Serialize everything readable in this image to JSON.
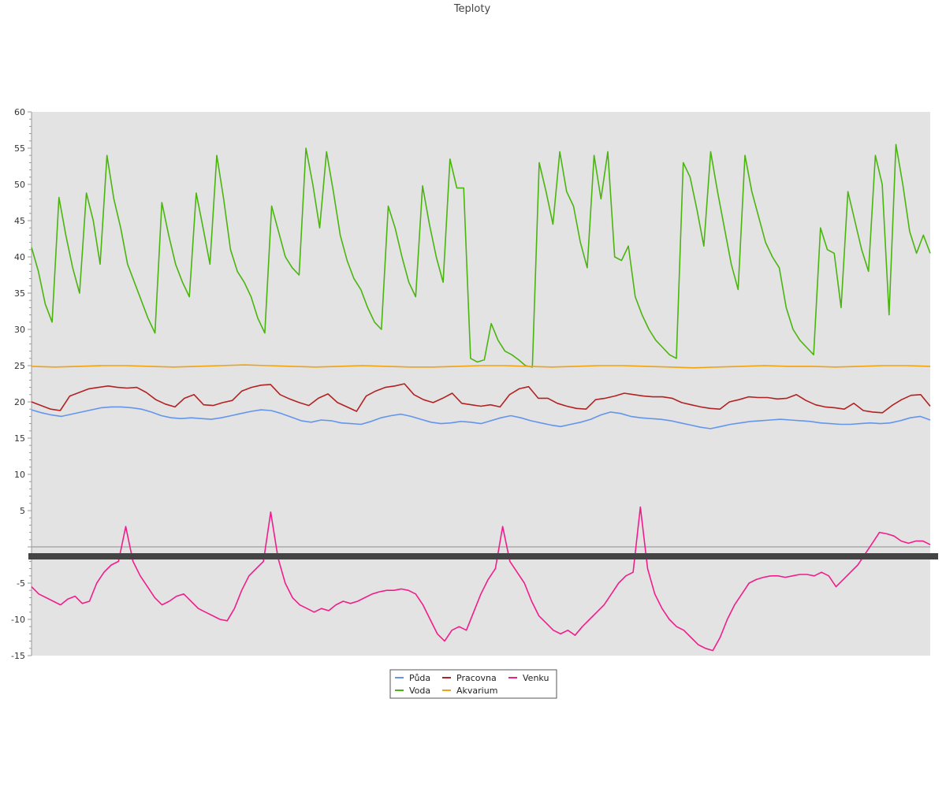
{
  "chart_data": {
    "type": "line",
    "title": "Teploty",
    "xlabel": "",
    "ylabel": "",
    "ylim": [
      -15,
      60
    ],
    "yticks": [
      -15,
      -10,
      -5,
      5,
      10,
      15,
      20,
      25,
      30,
      35,
      40,
      45,
      50,
      55,
      60
    ],
    "grid": false,
    "legend_position": "bottom-center",
    "x_tick_labels_note": "",
    "series": [
      {
        "name": "Půda",
        "color": "#6495ED",
        "values": [
          18.9,
          18.5,
          18.2,
          18.0,
          18.3,
          18.6,
          18.9,
          19.2,
          19.3,
          19.3,
          19.2,
          19.0,
          18.6,
          18.1,
          17.8,
          17.7,
          17.8,
          17.7,
          17.6,
          17.8,
          18.1,
          18.4,
          18.7,
          18.9,
          18.8,
          18.4,
          17.9,
          17.4,
          17.2,
          17.5,
          17.4,
          17.1,
          17.0,
          16.9,
          17.3,
          17.8,
          18.1,
          18.3,
          18.0,
          17.6,
          17.2,
          17.0,
          17.1,
          17.3,
          17.2,
          17.0,
          17.4,
          17.8,
          18.1,
          17.8,
          17.4,
          17.1,
          16.8,
          16.6,
          16.9,
          17.2,
          17.6,
          18.2,
          18.6,
          18.4,
          18.0,
          17.8,
          17.7,
          17.6,
          17.4,
          17.1,
          16.8,
          16.5,
          16.3,
          16.6,
          16.9,
          17.1,
          17.3,
          17.4,
          17.5,
          17.6,
          17.5,
          17.4,
          17.3,
          17.1,
          17.0,
          16.9,
          16.9,
          17.0,
          17.1,
          17.0,
          17.1,
          17.4,
          17.8,
          18.0,
          17.5
        ]
      },
      {
        "name": "Voda",
        "color": "#4AB50E",
        "values": [
          41.3,
          38.0,
          33.5,
          31.0,
          48.2,
          43.0,
          38.5,
          35.0,
          48.8,
          45.0,
          39.0,
          54.0,
          48.0,
          44.0,
          39.0,
          36.5,
          34.0,
          31.5,
          29.5,
          47.5,
          43.0,
          39.0,
          36.5,
          34.5,
          48.8,
          44.0,
          39.0,
          54.0,
          48.0,
          41.0,
          38.0,
          36.5,
          34.5,
          31.5,
          29.5,
          47.0,
          43.5,
          40.0,
          38.5,
          37.5,
          55.0,
          50.0,
          44.0,
          54.5,
          49.0,
          43.0,
          39.5,
          37.0,
          35.5,
          33.0,
          31.0,
          30.0,
          47.0,
          44.0,
          40.0,
          36.5,
          34.5,
          49.8,
          44.5,
          40.0,
          36.5,
          53.5,
          49.5,
          49.5,
          26.0,
          25.5,
          25.8,
          30.8,
          28.5,
          27.0,
          26.5,
          25.8,
          25.0,
          24.8,
          53.0,
          49.0,
          44.5,
          54.5,
          49.0,
          47.0,
          42.0,
          38.5,
          54.0,
          48.0,
          54.5,
          40.0,
          39.5,
          41.5,
          34.5,
          32.0,
          30.0,
          28.5,
          27.5,
          26.5,
          26.0,
          53.0,
          51.0,
          46.5,
          41.5,
          54.5,
          49.0,
          44.0,
          39.0,
          35.5,
          54.0,
          49.0,
          45.5,
          42.0,
          40.0,
          38.5,
          33.0,
          30.0,
          28.5,
          27.5,
          26.5,
          44.0,
          41.0,
          40.5,
          33.0,
          49.0,
          45.0,
          41.0,
          38.0,
          54.0,
          50.0,
          32.0,
          55.5,
          50.0,
          43.5,
          40.5,
          43.0,
          40.5
        ]
      },
      {
        "name": "Pracovna",
        "color": "#B22222",
        "values": [
          20.0,
          19.5,
          19.0,
          18.8,
          20.8,
          21.3,
          21.8,
          22.0,
          22.2,
          22.0,
          21.9,
          22.0,
          21.3,
          20.3,
          19.7,
          19.3,
          20.5,
          21.0,
          19.6,
          19.5,
          19.9,
          20.2,
          21.5,
          22.0,
          22.3,
          22.4,
          21.0,
          20.4,
          19.9,
          19.5,
          20.5,
          21.1,
          19.9,
          19.3,
          18.7,
          20.8,
          21.5,
          22.0,
          22.2,
          22.5,
          21.0,
          20.3,
          19.9,
          20.5,
          21.2,
          19.8,
          19.6,
          19.4,
          19.6,
          19.3,
          21.0,
          21.8,
          22.1,
          20.5,
          20.5,
          19.8,
          19.4,
          19.1,
          19.0,
          20.3,
          20.5,
          20.8,
          21.2,
          21.0,
          20.8,
          20.7,
          20.7,
          20.5,
          19.9,
          19.6,
          19.3,
          19.1,
          19.0,
          20.0,
          20.3,
          20.7,
          20.6,
          20.6,
          20.4,
          20.5,
          21.0,
          20.2,
          19.6,
          19.3,
          19.2,
          19.0,
          19.8,
          18.8,
          18.6,
          18.5,
          19.5,
          20.3,
          20.9,
          21.0,
          19.4
        ]
      },
      {
        "name": "Akvarium",
        "color": "#F2A20E",
        "values": [
          24.9,
          24.8,
          24.9,
          25.0,
          25.0,
          24.9,
          24.8,
          24.9,
          25.0,
          25.1,
          25.0,
          24.9,
          24.8,
          24.9,
          25.0,
          24.9,
          24.8,
          24.8,
          24.9,
          25.0,
          25.0,
          24.9,
          24.8,
          24.9,
          25.0,
          25.0,
          24.9,
          24.8,
          24.7,
          24.8,
          24.9,
          25.0,
          24.9,
          24.9,
          24.8,
          24.9,
          25.0,
          25.0,
          24.9
        ]
      },
      {
        "name": "Venku",
        "color": "#F01E8C",
        "values": [
          -5.5,
          -6.5,
          -7.0,
          -7.5,
          -8.0,
          -7.2,
          -6.8,
          -7.8,
          -7.5,
          -5.0,
          -3.5,
          -2.5,
          -2.0,
          2.8,
          -2.0,
          -4.0,
          -5.5,
          -7.0,
          -8.0,
          -7.5,
          -6.8,
          -6.5,
          -7.5,
          -8.5,
          -9.0,
          -9.5,
          -10.0,
          -10.2,
          -8.5,
          -6.0,
          -4.0,
          -3.0,
          -2.0,
          4.8,
          -1.5,
          -5.0,
          -7.0,
          -8.0,
          -8.5,
          -9.0,
          -8.5,
          -8.8,
          -8.0,
          -7.5,
          -7.8,
          -7.5,
          -7.0,
          -6.5,
          -6.2,
          -6.0,
          -6.0,
          -5.8,
          -6.0,
          -6.5,
          -8.0,
          -10.0,
          -12.0,
          -13.0,
          -11.5,
          -11.0,
          -11.5,
          -9.0,
          -6.5,
          -4.5,
          -3.0,
          2.8,
          -2.0,
          -3.5,
          -5.0,
          -7.5,
          -9.5,
          -10.5,
          -11.5,
          -12.0,
          -11.5,
          -12.2,
          -11.0,
          -10.0,
          -9.0,
          -8.0,
          -6.5,
          -5.0,
          -4.0,
          -3.5,
          5.5,
          -3.0,
          -6.5,
          -8.5,
          -10.0,
          -11.0,
          -11.5,
          -12.5,
          -13.5,
          -14.0,
          -14.3,
          -12.5,
          -10.0,
          -8.0,
          -6.5,
          -5.0,
          -4.5,
          -4.2,
          -4.0,
          -4.0,
          -4.2,
          -4.0,
          -3.8,
          -3.8,
          -4.0,
          -3.5,
          -4.0,
          -5.5,
          -4.5,
          -3.5,
          -2.5,
          -1.0,
          0.5,
          2.0,
          1.8,
          1.5,
          0.8,
          0.5,
          0.8,
          0.8,
          0.3
        ]
      }
    ]
  }
}
